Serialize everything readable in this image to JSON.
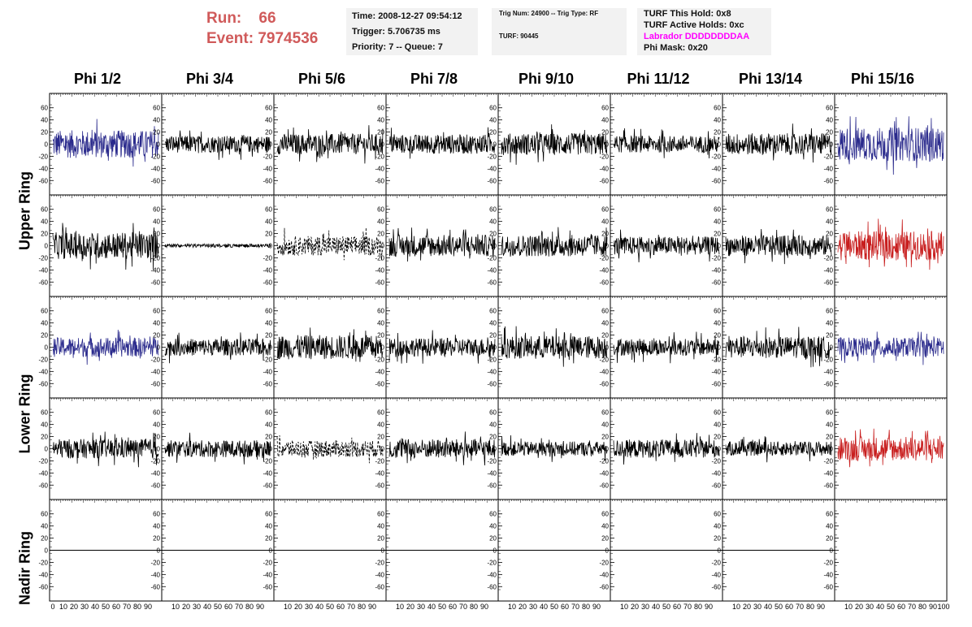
{
  "run": {
    "run_label": "Run:",
    "run_value": "66",
    "event_label": "Event:",
    "event_value": "7974536"
  },
  "info_box_1": {
    "time": "Time: 2008-12-27 09:54:12",
    "trigger": "Trigger: 5.706735 ms",
    "priority": "Priority: 7 -- Queue: 7"
  },
  "info_box_2": {
    "trig": "Trig Num: 24900 -- Trig Type: RF",
    "turf": "TURF: 90445"
  },
  "info_box_3": {
    "hold": "TURF This Hold: 0x8",
    "active": "TURF Active Holds: 0xc",
    "labrador": "Labrador DDDDDDDDAA",
    "phimask": "Phi Mask: 0x20"
  },
  "columns": [
    "Phi 1/2",
    "Phi 3/4",
    "Phi 5/6",
    "Phi 7/8",
    "Phi 9/10",
    "Phi 11/12",
    "Phi 13/14",
    "Phi 15/16"
  ],
  "ring_labels": {
    "upper": "Upper Ring",
    "lower": "Lower Ring",
    "nadir": "Nadir Ring"
  },
  "colors": {
    "run_text": "#d05a5a",
    "box_bg": "#f2f2f2",
    "labrador": "#ff00ff",
    "trace_black": "#000000",
    "trace_blue": "#2a2a8c",
    "trace_red": "#c81e1e"
  },
  "chart_data": {
    "type": "line",
    "y_ticks": [
      60,
      40,
      20,
      0,
      -20,
      -40,
      -60
    ],
    "x_ticks": [
      0,
      10,
      20,
      30,
      40,
      50,
      60,
      70,
      80,
      90,
      100
    ],
    "ylim": [
      -65,
      65
    ],
    "xlim": [
      0,
      100
    ],
    "rows": [
      {
        "ring": "upper",
        "channel": 1,
        "styles": [
          "blue",
          "black",
          "black",
          "black",
          "black",
          "black",
          "black",
          "blue"
        ],
        "amplitudes": [
          23,
          14,
          17,
          16,
          18,
          14,
          18,
          28
        ]
      },
      {
        "ring": "upper",
        "channel": 2,
        "styles": [
          "black",
          "flat",
          "dashed",
          "black",
          "black",
          "black",
          "black",
          "red"
        ],
        "amplitudes": [
          22,
          3,
          16,
          18,
          18,
          15,
          17,
          24
        ]
      },
      {
        "ring": "lower",
        "channel": 1,
        "styles": [
          "blue",
          "black",
          "black",
          "black",
          "black",
          "black",
          "black",
          "blue"
        ],
        "amplitudes": [
          16,
          14,
          20,
          15,
          19,
          14,
          18,
          16
        ]
      },
      {
        "ring": "lower",
        "channel": 2,
        "styles": [
          "black",
          "black",
          "dashed",
          "black",
          "black",
          "black",
          "black",
          "red"
        ],
        "amplitudes": [
          16,
          14,
          14,
          16,
          12,
          15,
          12,
          20
        ]
      },
      {
        "ring": "nadir",
        "channel": 1,
        "styles": [
          "zero",
          "zero",
          "zero",
          "zero",
          "zero",
          "zero",
          "zero",
          "empty"
        ],
        "amplitudes": [
          0,
          0,
          0,
          0,
          0,
          0,
          0,
          0
        ]
      }
    ]
  }
}
